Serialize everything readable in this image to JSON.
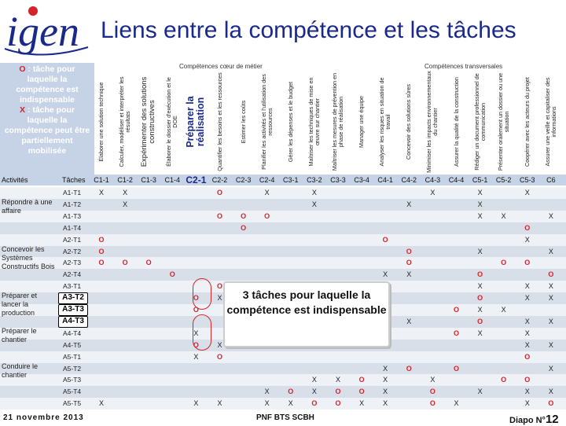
{
  "logo": {
    "text": "igen"
  },
  "title": "Liens entre la compétence et les tâches",
  "legend": {
    "o_key": "O",
    "o_text": " : tâche pour laquelle la compétence est indispensable",
    "x_key": "X",
    "x_text": " : tâche pour laquelle la compétence peut être partiellement mobilisée"
  },
  "categories": {
    "core": "Compétences cœur de métier",
    "transversal": "Compétences transversales"
  },
  "columns": [
    {
      "id": "C1-1",
      "desc": "Élaborer une solution technique"
    },
    {
      "id": "C1-2",
      "desc": "Calculer, modéliser et interpréter les résultats"
    },
    {
      "id": "C1-3",
      "desc": "Expérimenter des solutions constructives"
    },
    {
      "id": "C1-4",
      "desc": "Élaborer le dossier d'exécution et le DOE"
    },
    {
      "id": "C2-1",
      "desc": "Préparer la réalisation"
    },
    {
      "id": "C2-2",
      "desc": "Quantifier les besoins et les ressources"
    },
    {
      "id": "C2-3",
      "desc": "Estimer les coûts"
    },
    {
      "id": "C2-4",
      "desc": "Planifier les activités et l'utilisation des ressources"
    },
    {
      "id": "C3-1",
      "desc": "Gérer les dépenses et le budget"
    },
    {
      "id": "C3-2",
      "desc": "Maîtriser les techniques de mise en œuvre sur chantier"
    },
    {
      "id": "C3-3",
      "desc": "Maîtriser les mesures de prévention en phase de réalisation"
    },
    {
      "id": "C3-4",
      "desc": "Manager une équipe"
    },
    {
      "id": "C4-1",
      "desc": "Analyser les risques en situation de travail"
    },
    {
      "id": "C4-2",
      "desc": "Concevoir des solutions sûres"
    },
    {
      "id": "C4-3",
      "desc": "Minimiser les impacts environnementaux du chantier"
    },
    {
      "id": "C4-4",
      "desc": "Assurer la qualité de la construction"
    },
    {
      "id": "C5-1",
      "desc": "Rédiger un document professionnel de communication"
    },
    {
      "id": "C5-2",
      "desc": "Présenter oralement un dossier ou une situation"
    },
    {
      "id": "C5-3",
      "desc": "Coopérer avec les acteurs du projet"
    },
    {
      "id": "C6",
      "desc": "Assurer une veille et capitaliser des informations"
    }
  ],
  "header": {
    "activities": "Activités",
    "tasks": "Tâches"
  },
  "groups": [
    {
      "label": "Répondre à une affaire",
      "row": 0
    },
    {
      "label": "Concevoir les Systèmes Constructifs Bois",
      "row": 4
    },
    {
      "label": "Préparer et lancer la production",
      "row": 8
    },
    {
      "label": "Préparer le chantier",
      "row": 11
    },
    {
      "label": "Conduire le chantier",
      "row": 14
    }
  ],
  "tasks": [
    "A1-T1",
    "A1-T2",
    "A1-T3",
    "A1-T4",
    "A2-T1",
    "A2-T2",
    "A2-T3",
    "A2-T4",
    "A3-T1",
    "A3-T2",
    "A3-T3",
    "A4-T3",
    "A4-T4",
    "A4-T5",
    "A5-T1",
    "A5-T2",
    "A5-T3",
    "A5-T4",
    "A5-T5"
  ],
  "highlight_tasks": [
    "A3-T2",
    "A3-T3",
    "A4-T3"
  ],
  "marks": [
    {
      "r": 0,
      "c": 0,
      "v": "X"
    },
    {
      "r": 0,
      "c": 1,
      "v": "X"
    },
    {
      "r": 0,
      "c": 5,
      "v": "O"
    },
    {
      "r": 0,
      "c": 7,
      "v": "X"
    },
    {
      "r": 0,
      "c": 9,
      "v": "X"
    },
    {
      "r": 0,
      "c": 14,
      "v": "X"
    },
    {
      "r": 0,
      "c": 16,
      "v": "X"
    },
    {
      "r": 0,
      "c": 18,
      "v": "X"
    },
    {
      "r": 1,
      "c": 1,
      "v": "X"
    },
    {
      "r": 1,
      "c": 9,
      "v": "X"
    },
    {
      "r": 1,
      "c": 13,
      "v": "X"
    },
    {
      "r": 1,
      "c": 16,
      "v": "X"
    },
    {
      "r": 2,
      "c": 5,
      "v": "O"
    },
    {
      "r": 2,
      "c": 6,
      "v": "O"
    },
    {
      "r": 2,
      "c": 7,
      "v": "O"
    },
    {
      "r": 2,
      "c": 16,
      "v": "X"
    },
    {
      "r": 2,
      "c": 17,
      "v": "X"
    },
    {
      "r": 2,
      "c": 19,
      "v": "X"
    },
    {
      "r": 3,
      "c": 6,
      "v": "O"
    },
    {
      "r": 3,
      "c": 18,
      "v": "O"
    },
    {
      "r": 4,
      "c": 0,
      "v": "O"
    },
    {
      "r": 4,
      "c": 12,
      "v": "O"
    },
    {
      "r": 4,
      "c": 18,
      "v": "X"
    },
    {
      "r": 5,
      "c": 0,
      "v": "O"
    },
    {
      "r": 5,
      "c": 13,
      "v": "O"
    },
    {
      "r": 5,
      "c": 16,
      "v": "X"
    },
    {
      "r": 5,
      "c": 19,
      "v": "X"
    },
    {
      "r": 6,
      "c": 0,
      "v": "O"
    },
    {
      "r": 6,
      "c": 1,
      "v": "O"
    },
    {
      "r": 6,
      "c": 2,
      "v": "O"
    },
    {
      "r": 6,
      "c": 13,
      "v": "O"
    },
    {
      "r": 6,
      "c": 17,
      "v": "O"
    },
    {
      "r": 6,
      "c": 18,
      "v": "O"
    },
    {
      "r": 7,
      "c": 3,
      "v": "O"
    },
    {
      "r": 7,
      "c": 12,
      "v": "X"
    },
    {
      "r": 7,
      "c": 13,
      "v": "X"
    },
    {
      "r": 7,
      "c": 16,
      "v": "O"
    },
    {
      "r": 7,
      "c": 19,
      "v": "O"
    },
    {
      "r": 8,
      "c": 5,
      "v": "O"
    },
    {
      "r": 8,
      "c": 16,
      "v": "X"
    },
    {
      "r": 8,
      "c": 18,
      "v": "X"
    },
    {
      "r": 8,
      "c": 19,
      "v": "X"
    },
    {
      "r": 9,
      "c": 4,
      "v": "O"
    },
    {
      "r": 9,
      "c": 5,
      "v": "X"
    },
    {
      "r": 9,
      "c": 16,
      "v": "O"
    },
    {
      "r": 9,
      "c": 18,
      "v": "X"
    },
    {
      "r": 9,
      "c": 19,
      "v": "X"
    },
    {
      "r": 10,
      "c": 4,
      "v": "O"
    },
    {
      "r": 10,
      "c": 15,
      "v": "O"
    },
    {
      "r": 10,
      "c": 16,
      "v": "X"
    },
    {
      "r": 10,
      "c": 17,
      "v": "X"
    },
    {
      "r": 11,
      "c": 13,
      "v": "X"
    },
    {
      "r": 11,
      "c": 16,
      "v": "O"
    },
    {
      "r": 11,
      "c": 18,
      "v": "X"
    },
    {
      "r": 11,
      "c": 19,
      "v": "X"
    },
    {
      "r": 12,
      "c": 4,
      "v": "X"
    },
    {
      "r": 12,
      "c": 15,
      "v": "O"
    },
    {
      "r": 12,
      "c": 16,
      "v": "X"
    },
    {
      "r": 12,
      "c": 18,
      "v": "X"
    },
    {
      "r": 13,
      "c": 4,
      "v": "O"
    },
    {
      "r": 13,
      "c": 5,
      "v": "X"
    },
    {
      "r": 13,
      "c": 18,
      "v": "X"
    },
    {
      "r": 13,
      "c": 19,
      "v": "X"
    },
    {
      "r": 14,
      "c": 4,
      "v": "X"
    },
    {
      "r": 14,
      "c": 5,
      "v": "O"
    },
    {
      "r": 14,
      "c": 18,
      "v": "O"
    },
    {
      "r": 15,
      "c": 12,
      "v": "X"
    },
    {
      "r": 15,
      "c": 13,
      "v": "O"
    },
    {
      "r": 15,
      "c": 15,
      "v": "O"
    },
    {
      "r": 15,
      "c": 19,
      "v": "X"
    },
    {
      "r": 16,
      "c": 9,
      "v": "X"
    },
    {
      "r": 16,
      "c": 10,
      "v": "X"
    },
    {
      "r": 16,
      "c": 11,
      "v": "O"
    },
    {
      "r": 16,
      "c": 12,
      "v": "X"
    },
    {
      "r": 16,
      "c": 14,
      "v": "X"
    },
    {
      "r": 16,
      "c": 17,
      "v": "O"
    },
    {
      "r": 16,
      "c": 18,
      "v": "O"
    },
    {
      "r": 17,
      "c": 7,
      "v": "X"
    },
    {
      "r": 17,
      "c": 8,
      "v": "O"
    },
    {
      "r": 17,
      "c": 9,
      "v": "X"
    },
    {
      "r": 17,
      "c": 10,
      "v": "O"
    },
    {
      "r": 17,
      "c": 11,
      "v": "O"
    },
    {
      "r": 17,
      "c": 12,
      "v": "X"
    },
    {
      "r": 17,
      "c": 14,
      "v": "O"
    },
    {
      "r": 17,
      "c": 16,
      "v": "X"
    },
    {
      "r": 17,
      "c": 18,
      "v": "X"
    },
    {
      "r": 17,
      "c": 19,
      "v": "X"
    },
    {
      "r": 18,
      "c": 0,
      "v": "X"
    },
    {
      "r": 18,
      "c": 4,
      "v": "X"
    },
    {
      "r": 18,
      "c": 5,
      "v": "X"
    },
    {
      "r": 18,
      "c": 7,
      "v": "X"
    },
    {
      "r": 18,
      "c": 8,
      "v": "X"
    },
    {
      "r": 18,
      "c": 9,
      "v": "O"
    },
    {
      "r": 18,
      "c": 10,
      "v": "O"
    },
    {
      "r": 18,
      "c": 11,
      "v": "X"
    },
    {
      "r": 18,
      "c": 12,
      "v": "X"
    },
    {
      "r": 18,
      "c": 14,
      "v": "O"
    },
    {
      "r": 18,
      "c": 15,
      "v": "X"
    },
    {
      "r": 18,
      "c": 18,
      "v": "X"
    },
    {
      "r": 18,
      "c": 19,
      "v": "O"
    }
  ],
  "callout": "3 tâches pour laquelle la compétence est indispensable",
  "footer": {
    "date": "21 novembre 2013",
    "center": "PNF BTS SCBH",
    "slide_label": "Diapo N°",
    "slide_number": "12"
  },
  "colors": {
    "title": "#1a2a8a",
    "red": "#d4232a",
    "legend_bg": "#c6d3e6"
  }
}
